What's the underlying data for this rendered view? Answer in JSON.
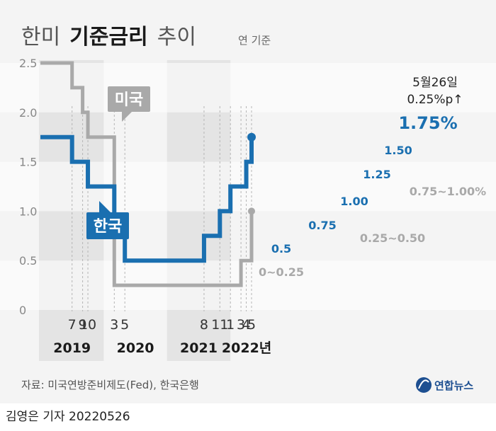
{
  "header": {
    "title_prefix": "한미",
    "title_bold": "기준금리",
    "title_suffix": "추이",
    "unit": "연 기준"
  },
  "chart_data": {
    "type": "line",
    "step": true,
    "title": "한미 기준금리 추이",
    "unit": "연 기준",
    "ylim": [
      0,
      2.5
    ],
    "y_ticks": [
      "0",
      "0.5",
      "1.0",
      "1.5",
      "2.0",
      "2.5"
    ],
    "x_ticks": [
      "7",
      "9",
      "10",
      "3",
      "5",
      "8",
      "11",
      "1",
      "3",
      "4",
      "5"
    ],
    "years": [
      "2019",
      "2020",
      "2021",
      "2022년"
    ],
    "grid": "horizontal bands",
    "series": [
      {
        "name": "미국",
        "color": "#a9a9a9",
        "points": [
          [
            "2019-01",
            2.5
          ],
          [
            "2019-07",
            2.25
          ],
          [
            "2019-09",
            2.0
          ],
          [
            "2019-10",
            1.75
          ],
          [
            "2020-03",
            0.25
          ],
          [
            "2022-03",
            0.5
          ],
          [
            "2022-05",
            1.0
          ]
        ],
        "labels": [
          "0~0.25",
          "0.25~0.50",
          "0.75~1.00%"
        ]
      },
      {
        "name": "한국",
        "color": "#1a6fb0",
        "points": [
          [
            "2019-01",
            1.75
          ],
          [
            "2019-07",
            1.5
          ],
          [
            "2019-10",
            1.25
          ],
          [
            "2020-03",
            0.75
          ],
          [
            "2020-05",
            0.5
          ],
          [
            "2021-08",
            0.75
          ],
          [
            "2021-11",
            1.0
          ],
          [
            "2022-01",
            1.25
          ],
          [
            "2022-04",
            1.5
          ],
          [
            "2022-05",
            1.75
          ]
        ],
        "labels": [
          "0.5",
          "0.75",
          "1.00",
          "1.25",
          "1.50",
          "1.75%"
        ]
      }
    ],
    "annotation": {
      "date": "5월26일",
      "change": "0.25%p↑"
    }
  },
  "footer": {
    "source": "자료: 미국연방준비제도(Fed), 한국은행",
    "logo": "연합뉴스",
    "byline": "김영은 기자  20220526"
  }
}
